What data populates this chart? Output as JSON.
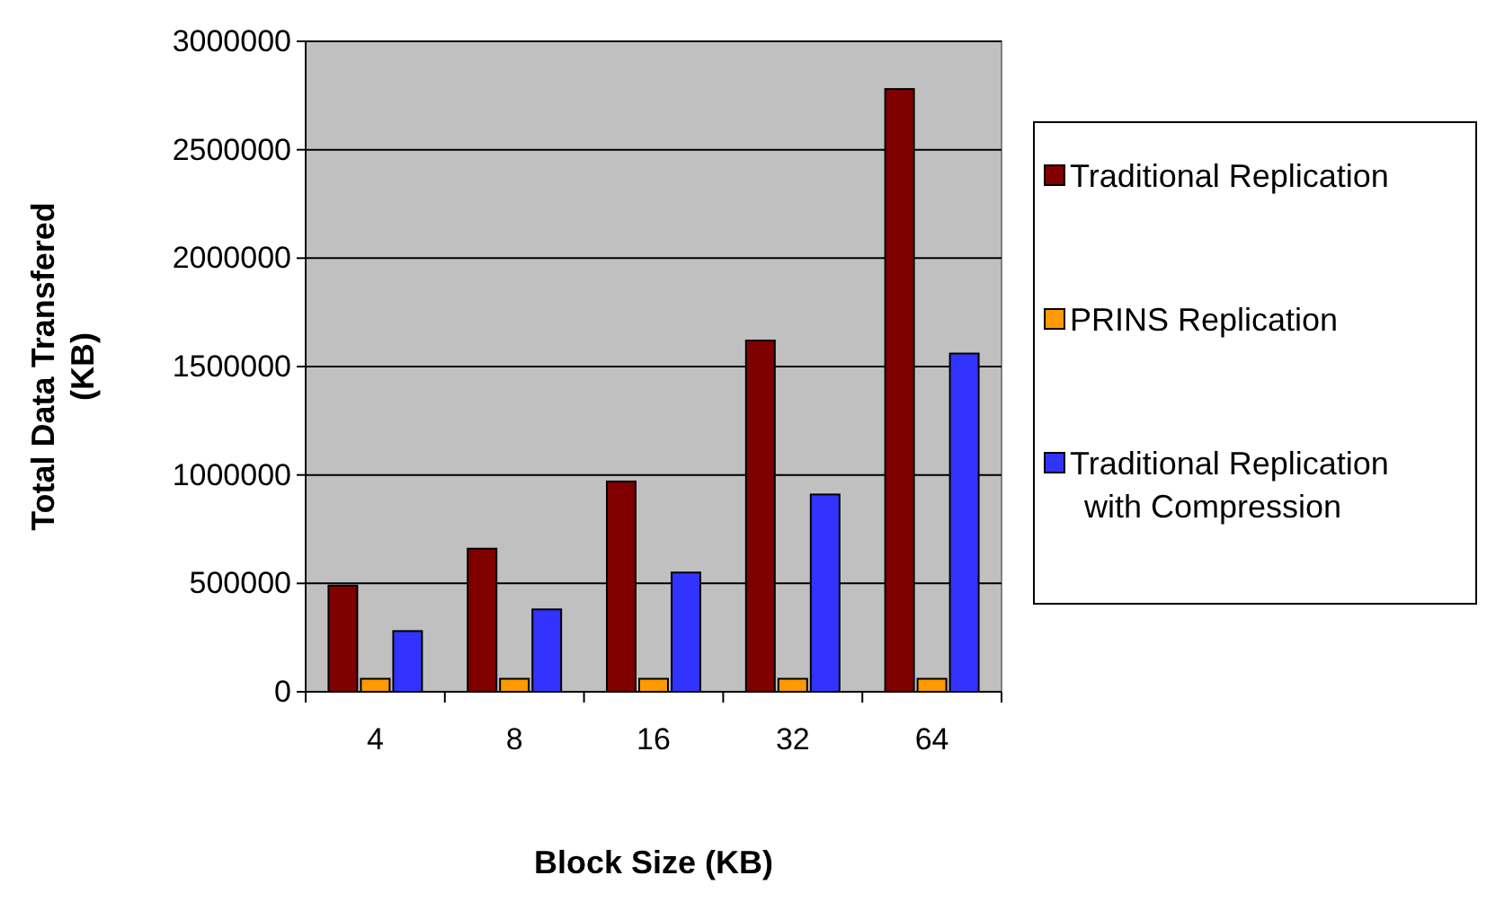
{
  "chart_data": {
    "type": "bar",
    "xlabel": "Block Size (KB)",
    "ylabel": "Total Data Transfered (KB)",
    "categories": [
      "4",
      "8",
      "16",
      "32",
      "64"
    ],
    "series": [
      {
        "name": "Traditional Replication",
        "color": "#800000",
        "values": [
          490000,
          660000,
          970000,
          1620000,
          2780000
        ]
      },
      {
        "name": "PRINS Replication",
        "color": "#ff9900",
        "values": [
          60000,
          60000,
          60000,
          60000,
          60000
        ]
      },
      {
        "name": "Traditional Replication with Compression",
        "color": "#3333ff",
        "values": [
          280000,
          380000,
          550000,
          910000,
          1560000
        ]
      }
    ],
    "ylim": [
      0,
      3000000
    ],
    "yticks": [
      0,
      500000,
      1000000,
      1500000,
      2000000,
      2500000,
      3000000
    ],
    "grid": "y",
    "legend": "right"
  }
}
